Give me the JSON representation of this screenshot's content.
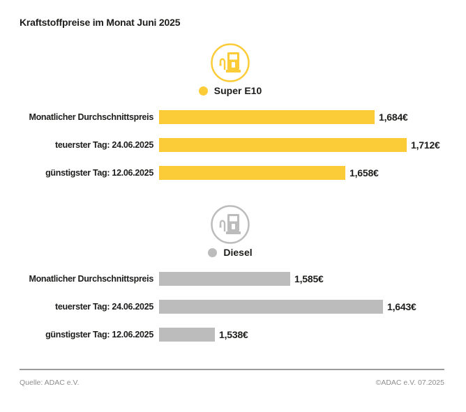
{
  "header": {
    "title": "Kraftstoffpreise im Monat Juni 2025"
  },
  "chart_data": [
    {
      "type": "bar",
      "fuel": "Super E10",
      "icon": "fuel-pump-icon",
      "color": "#FBCB38",
      "categories": [
        "Monatlicher Durchschnittspreis",
        "teuerster Tag: 24.06.2025",
        "günstigster Tag: 12.06.2025"
      ],
      "values": [
        1.684,
        1.712,
        1.658
      ],
      "value_labels": [
        "1,684€",
        "1,712€",
        "1,658€"
      ],
      "unit": "€",
      "xlim": [
        1.495,
        1.715
      ],
      "legend_position": "top-center",
      "grid": false
    },
    {
      "type": "bar",
      "fuel": "Diesel",
      "icon": "fuel-pump-icon",
      "color": "#BCBCBC",
      "categories": [
        "Monatlicher Durchschnittspreis",
        "teuerster Tag: 24.06.2025",
        "günstigster Tag: 12.06.2025"
      ],
      "values": [
        1.585,
        1.643,
        1.538
      ],
      "value_labels": [
        "1,585€",
        "1,643€",
        "1,538€"
      ],
      "unit": "€",
      "xlim": [
        1.503,
        1.66
      ],
      "legend_position": "top-center",
      "grid": false
    }
  ],
  "footer": {
    "source": "Quelle: ADAC e.V.",
    "copyright": "©ADAC e.V. 07.2025"
  }
}
